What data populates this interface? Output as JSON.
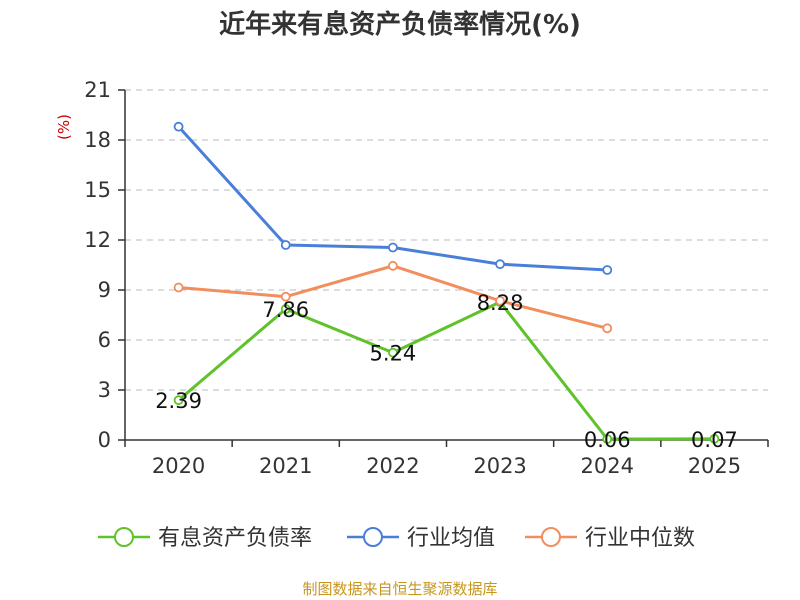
{
  "chart_data": {
    "type": "line",
    "title": "近年来有息资产负债率情况(%)",
    "ylabel": "(%)",
    "xlabel": "",
    "categories": [
      "2020",
      "2021",
      "2022",
      "2023",
      "2024",
      "2025"
    ],
    "ylim": [
      0,
      21
    ],
    "yticks": [
      0,
      3,
      6,
      9,
      12,
      15,
      18,
      21
    ],
    "grid": true,
    "legend_position": "bottom",
    "series": [
      {
        "name": "有息资产负债率",
        "color": "#5ec229",
        "values": [
          2.39,
          7.86,
          5.24,
          8.28,
          0.06,
          0.07
        ],
        "labels": [
          "2.39",
          "7.86",
          "5.24",
          "8.28",
          "0.06",
          "0.07"
        ]
      },
      {
        "name": "行业均值",
        "color": "#4a7fd9",
        "values": [
          18.8,
          11.7,
          11.55,
          10.55,
          10.2,
          null
        ]
      },
      {
        "name": "行业中位数",
        "color": "#f28e5e",
        "values": [
          9.15,
          8.6,
          10.45,
          8.35,
          6.7,
          null
        ]
      }
    ],
    "source": "制图数据来自恒生聚源数据库"
  }
}
